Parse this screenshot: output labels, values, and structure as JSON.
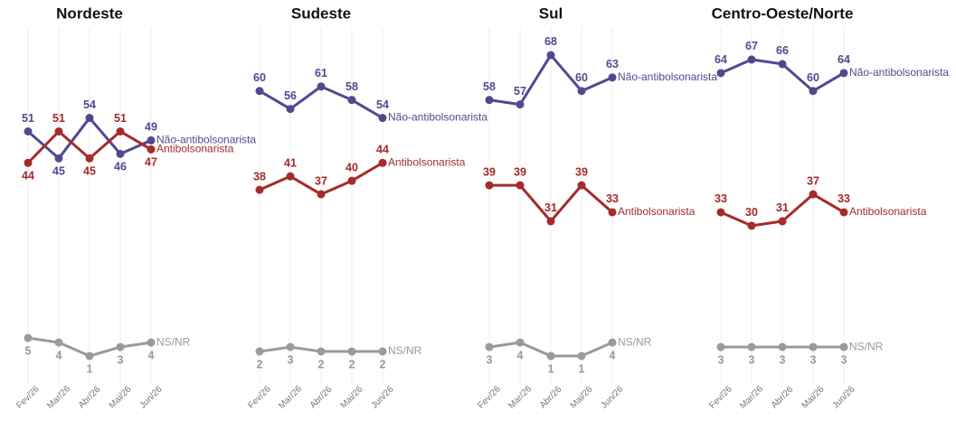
{
  "chart_data": [
    {
      "type": "line",
      "title": "Nordeste",
      "categories": [
        "Fev/26",
        "Mar/26",
        "Abr/26",
        "Mai/26",
        "Jun/26"
      ],
      "ylim": [
        0,
        70
      ],
      "series": [
        {
          "name": "Não-antibolsonarista",
          "color": "#4f4a8f",
          "values": [
            51,
            45,
            54,
            46,
            49
          ]
        },
        {
          "name": "Antibolsonarista",
          "color": "#a52a2a",
          "values": [
            44,
            51,
            45,
            51,
            47
          ]
        },
        {
          "name": "NS/NR",
          "color": "#9a9a9a",
          "values": [
            5,
            4,
            1,
            3,
            4
          ]
        }
      ]
    },
    {
      "type": "line",
      "title": "Sudeste",
      "categories": [
        "Fev/26",
        "Mar/26",
        "Abr/26",
        "Mai/26",
        "Jun/26"
      ],
      "ylim": [
        0,
        70
      ],
      "series": [
        {
          "name": "Não-antibolsonarista",
          "color": "#4f4a8f",
          "values": [
            60,
            56,
            61,
            58,
            54
          ]
        },
        {
          "name": "Antibolsonarista",
          "color": "#a52a2a",
          "values": [
            38,
            41,
            37,
            40,
            44
          ]
        },
        {
          "name": "NS/NR",
          "color": "#9a9a9a",
          "values": [
            2,
            3,
            2,
            2,
            2
          ]
        }
      ]
    },
    {
      "type": "line",
      "title": "Sul",
      "categories": [
        "Fev/26",
        "Mar/26",
        "Abr/26",
        "Mai/26",
        "Jun/26"
      ],
      "ylim": [
        0,
        70
      ],
      "series": [
        {
          "name": "Não-antibolsonarista",
          "color": "#4f4a8f",
          "values": [
            58,
            57,
            68,
            60,
            63
          ]
        },
        {
          "name": "Antibolsonarista",
          "color": "#a52a2a",
          "values": [
            39,
            39,
            31,
            39,
            33
          ]
        },
        {
          "name": "NS/NR",
          "color": "#9a9a9a",
          "values": [
            3,
            4,
            1,
            1,
            4
          ]
        }
      ]
    },
    {
      "type": "line",
      "title": "Centro-Oeste/Norte",
      "categories": [
        "Fev/26",
        "Mar/26",
        "Abr/26",
        "Mai/26",
        "Jun/26"
      ],
      "ylim": [
        0,
        70
      ],
      "series": [
        {
          "name": "Não-antibolsonarista",
          "color": "#4f4a8f",
          "values": [
            64,
            67,
            66,
            60,
            64
          ]
        },
        {
          "name": "Antibolsonarista",
          "color": "#a52a2a",
          "values": [
            33,
            30,
            31,
            37,
            33
          ]
        },
        {
          "name": "NS/NR",
          "color": "#9a9a9a",
          "values": [
            3,
            3,
            3,
            3,
            3
          ]
        }
      ]
    }
  ]
}
